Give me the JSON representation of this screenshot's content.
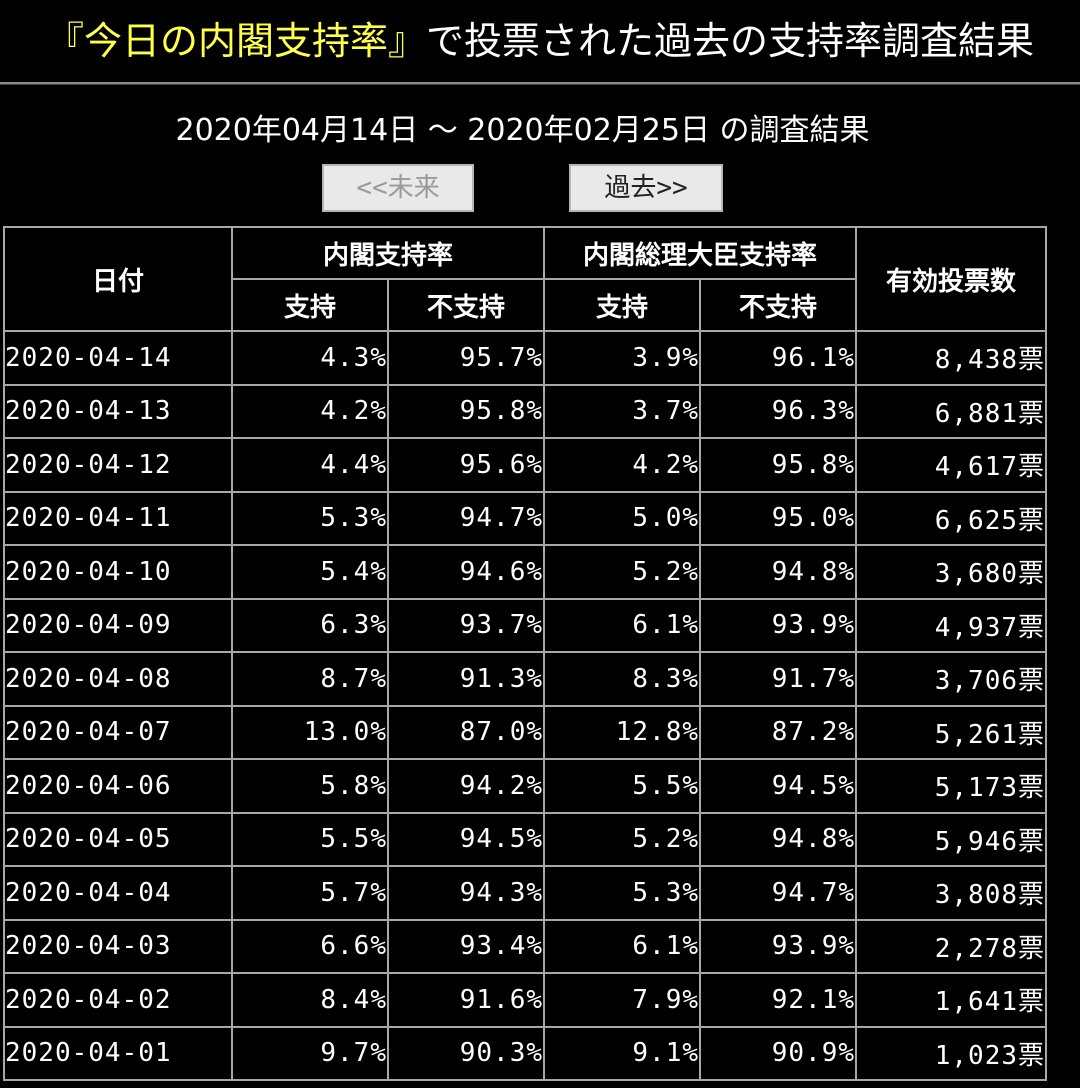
{
  "header": {
    "title_accent": "『今日の内閣支持率』",
    "title_rest": "で投票された過去の支持率調査結果"
  },
  "range_title": "2020年04月14日 〜 2020年02月25日 の調査結果",
  "nav": {
    "future_label": "<<未来",
    "past_label": "過去>>"
  },
  "table": {
    "headers": {
      "date": "日付",
      "cabinet": "内閣支持率",
      "pm": "内閣総理大臣支持率",
      "votes": "有効投票数",
      "support": "支持",
      "nonsupport": "不支持"
    },
    "rows": [
      {
        "date": "2020-04-14",
        "cab_s": "4.3%",
        "cab_n": "95.7%",
        "pm_s": "3.9%",
        "pm_n": "96.1%",
        "votes": "8,438票"
      },
      {
        "date": "2020-04-13",
        "cab_s": "4.2%",
        "cab_n": "95.8%",
        "pm_s": "3.7%",
        "pm_n": "96.3%",
        "votes": "6,881票"
      },
      {
        "date": "2020-04-12",
        "cab_s": "4.4%",
        "cab_n": "95.6%",
        "pm_s": "4.2%",
        "pm_n": "95.8%",
        "votes": "4,617票"
      },
      {
        "date": "2020-04-11",
        "cab_s": "5.3%",
        "cab_n": "94.7%",
        "pm_s": "5.0%",
        "pm_n": "95.0%",
        "votes": "6,625票"
      },
      {
        "date": "2020-04-10",
        "cab_s": "5.4%",
        "cab_n": "94.6%",
        "pm_s": "5.2%",
        "pm_n": "94.8%",
        "votes": "3,680票"
      },
      {
        "date": "2020-04-09",
        "cab_s": "6.3%",
        "cab_n": "93.7%",
        "pm_s": "6.1%",
        "pm_n": "93.9%",
        "votes": "4,937票"
      },
      {
        "date": "2020-04-08",
        "cab_s": "8.7%",
        "cab_n": "91.3%",
        "pm_s": "8.3%",
        "pm_n": "91.7%",
        "votes": "3,706票"
      },
      {
        "date": "2020-04-07",
        "cab_s": "13.0%",
        "cab_n": "87.0%",
        "pm_s": "12.8%",
        "pm_n": "87.2%",
        "votes": "5,261票"
      },
      {
        "date": "2020-04-06",
        "cab_s": "5.8%",
        "cab_n": "94.2%",
        "pm_s": "5.5%",
        "pm_n": "94.5%",
        "votes": "5,173票"
      },
      {
        "date": "2020-04-05",
        "cab_s": "5.5%",
        "cab_n": "94.5%",
        "pm_s": "5.2%",
        "pm_n": "94.8%",
        "votes": "5,946票"
      },
      {
        "date": "2020-04-04",
        "cab_s": "5.7%",
        "cab_n": "94.3%",
        "pm_s": "5.3%",
        "pm_n": "94.7%",
        "votes": "3,808票"
      },
      {
        "date": "2020-04-03",
        "cab_s": "6.6%",
        "cab_n": "93.4%",
        "pm_s": "6.1%",
        "pm_n": "93.9%",
        "votes": "2,278票"
      },
      {
        "date": "2020-04-02",
        "cab_s": "8.4%",
        "cab_n": "91.6%",
        "pm_s": "7.9%",
        "pm_n": "92.1%",
        "votes": "1,641票"
      },
      {
        "date": "2020-04-01",
        "cab_s": "9.7%",
        "cab_n": "90.3%",
        "pm_s": "9.1%",
        "pm_n": "90.9%",
        "votes": "1,023票"
      }
    ]
  },
  "colors": {
    "background": "#000000",
    "accent_title": "#ffff4d",
    "text": "#ffffff",
    "border": "#a8a8a8",
    "button_bg": "#e9e9e9"
  }
}
